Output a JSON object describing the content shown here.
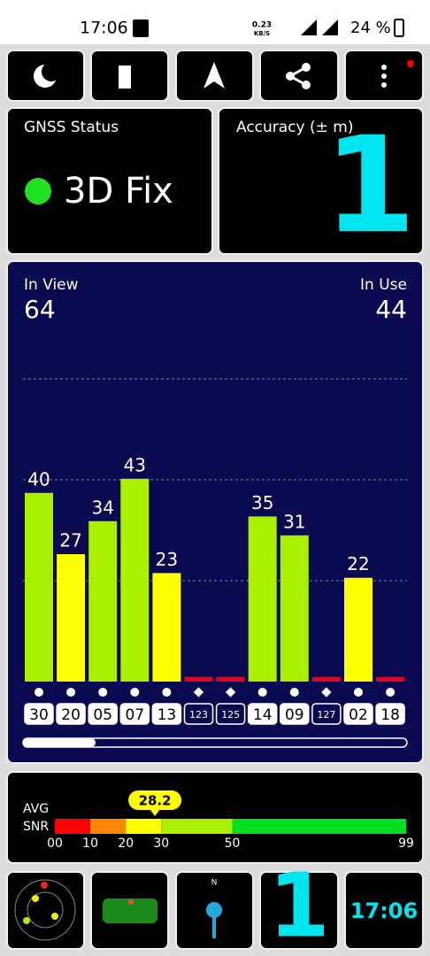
{
  "status_bar": {
    "time": "17:06",
    "net_speed": "0.23",
    "net_unit": "KB/S",
    "battery": "24 %"
  },
  "gnss_status": {
    "title": "GNSS Status",
    "fix": "3D Fix"
  },
  "accuracy": {
    "title": "Accuracy (± m)",
    "value": 1
  },
  "satellites": {
    "in_view_label": "In View",
    "in_view": 64,
    "in_use_label": "In Use",
    "in_use": 44,
    "bars": [
      {
        "id": "30",
        "snr": 40,
        "marker": "circle",
        "color": "#aaee00"
      },
      {
        "id": "20",
        "snr": 27,
        "marker": "circle",
        "color": "#ffff00"
      },
      {
        "id": "05",
        "snr": 34,
        "marker": "circle",
        "color": "#aaee00"
      },
      {
        "id": "07",
        "snr": 43,
        "marker": "circle",
        "color": "#aaee00"
      },
      {
        "id": "13",
        "snr": 23,
        "marker": "circle",
        "color": "#ffff00"
      },
      {
        "id": "123",
        "snr": 1,
        "marker": "diamond",
        "color": "#e8001c"
      },
      {
        "id": "125",
        "snr": 1,
        "marker": "diamond",
        "color": "#e8001c"
      },
      {
        "id": "14",
        "snr": 35,
        "marker": "circle",
        "color": "#aaee00"
      },
      {
        "id": "09",
        "snr": 31,
        "marker": "circle",
        "color": "#aaee00"
      },
      {
        "id": "127",
        "snr": 1,
        "marker": "diamond",
        "color": "#e8001c"
      },
      {
        "id": "02",
        "snr": 22,
        "marker": "circle",
        "color": "#ffff00"
      },
      {
        "id": "18",
        "snr": 1,
        "marker": "circle",
        "color": "#e8001c"
      }
    ]
  },
  "avg_snr": {
    "label_line1": "AVG",
    "label_line2": "SNR",
    "value": 28.2,
    "xlim": [
      0,
      99
    ],
    "xticks": [
      {
        "value": 0,
        "label": "00"
      },
      10,
      20,
      30,
      50,
      99
    ],
    "segments": [
      {
        "from": 0,
        "to": 10,
        "color": "#ff0000"
      },
      {
        "from": 10,
        "to": 20,
        "color": "#ff8800"
      },
      {
        "from": 20,
        "to": 30,
        "color": "#ffff00"
      },
      {
        "from": 30,
        "to": 50,
        "color": "#aaee00"
      },
      {
        "from": 50,
        "to": 99,
        "color": "#00e020"
      }
    ]
  },
  "bottom": {
    "fix_count": 1,
    "clock": "17:06"
  }
}
